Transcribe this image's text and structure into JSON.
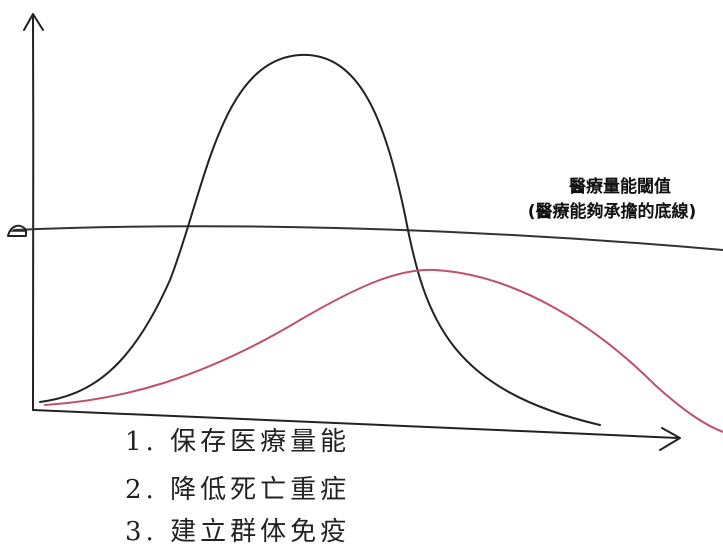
{
  "threshold_label": {
    "title": "醫療量能閾值",
    "subtitle": "(醫療能夠承擔的底線)"
  },
  "notes": [
    "1. 保存医療量能",
    "2. 降低死亡重症",
    "3. 建立群体免疫"
  ]
}
